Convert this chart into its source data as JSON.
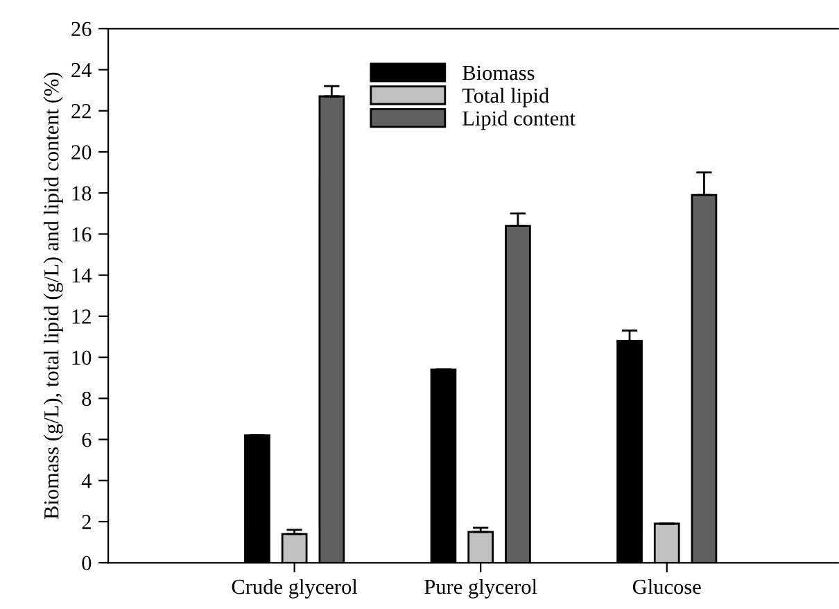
{
  "chart_data": {
    "type": "bar",
    "ylabel": "Biomass (g/L), total lipid (g/L) and lipid content (%)",
    "categories": [
      "Crude glycerol",
      "Pure glycerol",
      "Glucose"
    ],
    "series": [
      {
        "name": "Biomass",
        "color": "#000000",
        "values": [
          6.2,
          9.4,
          10.8
        ],
        "errors": [
          0,
          0,
          0.5
        ]
      },
      {
        "name": "Total lipid",
        "color": "#c0c0c0",
        "values": [
          1.4,
          1.5,
          1.9
        ],
        "errors": [
          0.2,
          0.2,
          0
        ]
      },
      {
        "name": "Lipid content",
        "color": "#606060",
        "values": [
          22.7,
          16.4,
          17.9
        ],
        "errors": [
          0.5,
          0.6,
          1.1
        ]
      }
    ],
    "ylim": [
      0,
      26
    ],
    "yticks": [
      0,
      2,
      4,
      6,
      8,
      10,
      12,
      14,
      16,
      18,
      20,
      22,
      24,
      26
    ],
    "grid": false,
    "legend": "top"
  }
}
